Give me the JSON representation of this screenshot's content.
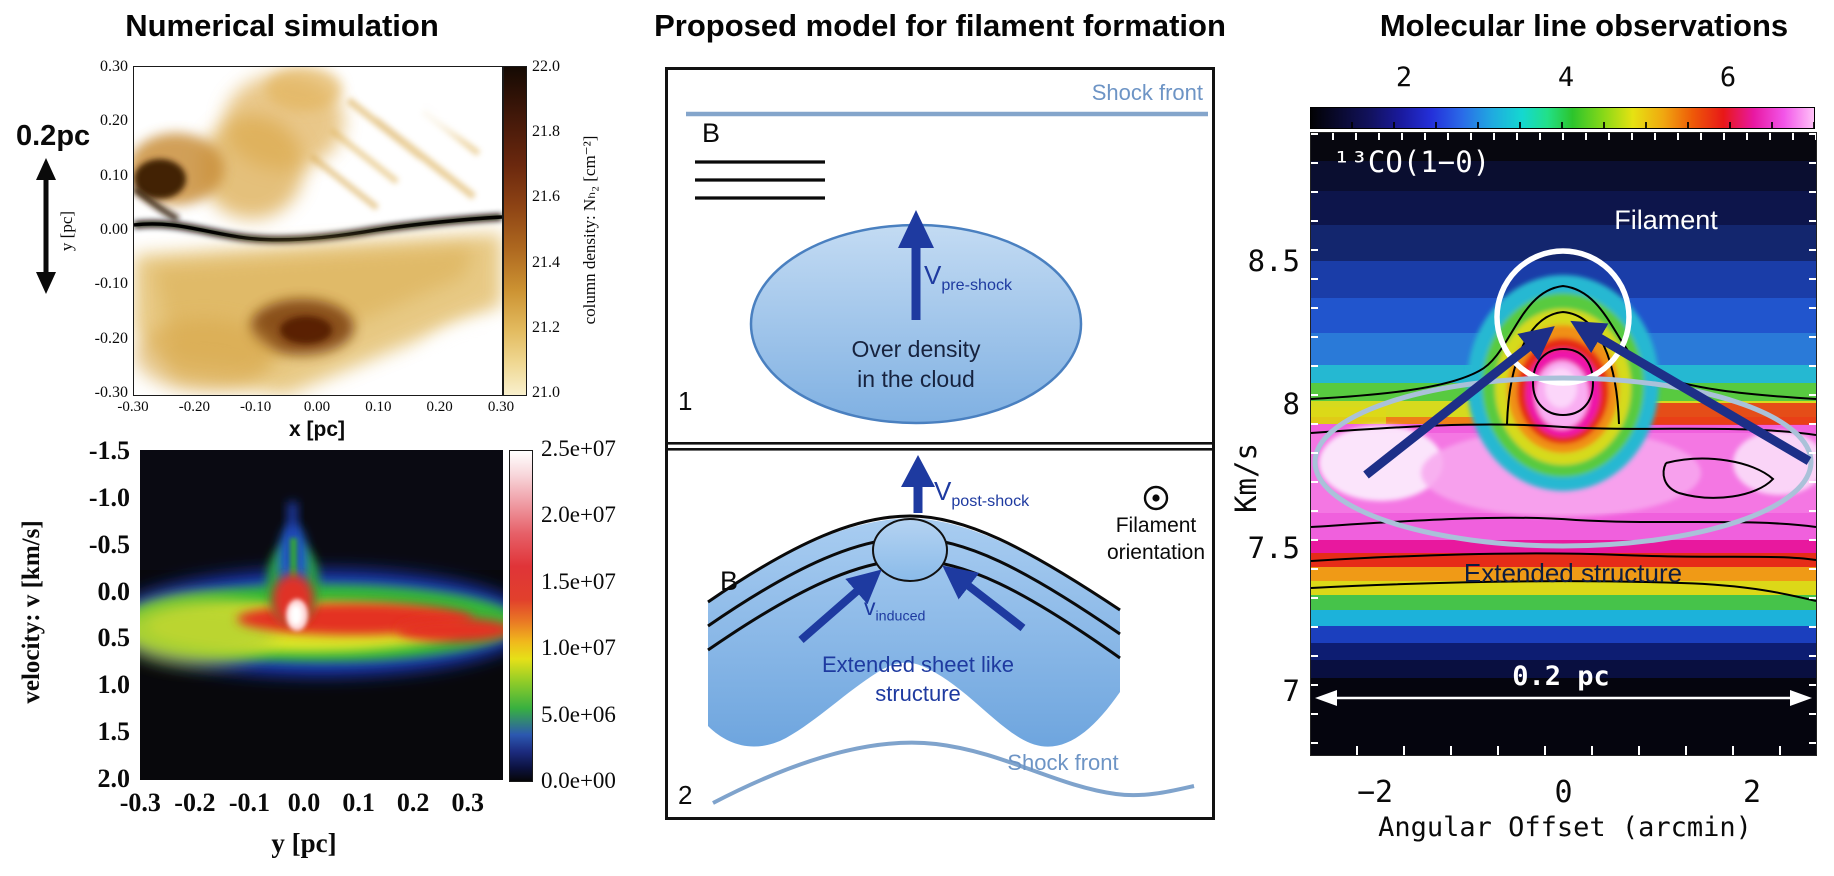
{
  "panels": {
    "left": {
      "title": "Numerical simulation",
      "scale_label": "0.2pc",
      "top_plot": {
        "ylabel": "y [pc]",
        "xlabel": "x [pc]",
        "yticks": [
          "0.30",
          "0.20",
          "0.10",
          "0.00",
          "-0.10",
          "-0.20",
          "-0.30"
        ],
        "xticks": [
          "-0.30",
          "-0.20",
          "-0.10",
          "0.00",
          "0.10",
          "0.20",
          "0.30"
        ],
        "colorbar": {
          "label": "column density: Nₕ₂ [cm⁻²]",
          "ticks": [
            "22.0",
            "21.8",
            "21.6",
            "21.4",
            "21.2",
            "21.0"
          ]
        }
      },
      "bottom_plot": {
        "ylabel": "velocity: v [km/s]",
        "xlabel": "y [pc]",
        "yticks": [
          "-1.5",
          "-1.0",
          "-0.5",
          "0.0",
          "0.5",
          "1.0",
          "1.5",
          "2.0"
        ],
        "xticks": [
          "-0.3",
          "-0.2",
          "-0.1",
          "0.0",
          "0.1",
          "0.2",
          "0.3"
        ],
        "colorbar": {
          "ticks": [
            "2.5e+07",
            "2.0e+07",
            "1.5e+07",
            "1.0e+07",
            "5.0e+06",
            "0.0e+00"
          ]
        }
      }
    },
    "middle": {
      "title": "Proposed model for filament formation",
      "stage1": {
        "number": "1",
        "shock_front_label": "Shock front",
        "b_label": "B",
        "v_label": "V",
        "v_sub": "pre-shock",
        "ellipse_line1": "Over density",
        "ellipse_line2": "in the cloud"
      },
      "stage2": {
        "number": "2",
        "v_label": "V",
        "v_sub": "post-shock",
        "b_label": "B",
        "vi_label": "v",
        "vi_sub": "induced",
        "sheet_line1": "Extended sheet like",
        "sheet_line2": "structure",
        "shock_front_label": "Shock front",
        "orientation_line1": "Filament",
        "orientation_line2": "orientation"
      }
    },
    "right": {
      "title": "Molecular line observations",
      "colorbar_ticks": [
        "2",
        "4",
        "6"
      ],
      "line_label": "¹³CO(1−0)",
      "filament_label": "Filament",
      "extended_label": "Extended structure",
      "scale_label": "0.2 pc",
      "ylabel": "Km/s",
      "yticks": [
        "8.5",
        "8",
        "7.5",
        "7"
      ],
      "xticks": [
        "−2",
        "0",
        "2"
      ],
      "xlabel": "Angular Offset (arcmin)"
    }
  },
  "colors": {
    "navy_arrow": "#1e3aa0",
    "shock_front_blue": "#84a5cb",
    "cloud_fill_light": "#c3dbf3",
    "cloud_fill_dark": "#7fb0e2",
    "filament_circle": "#ffffff",
    "extended_ellipse": "#aac1d9",
    "density_cbar_top": "#150a03",
    "density_cbar_bottom": "#f9f0cd"
  },
  "chart_data": [
    {
      "type": "heatmap",
      "title": "Numerical simulation: column density map",
      "xlabel": "x [pc]",
      "ylabel": "y [pc]",
      "xlim": [
        -0.3,
        0.3
      ],
      "ylim": [
        -0.3,
        0.3
      ],
      "xticks": [
        -0.3,
        -0.2,
        -0.1,
        0.0,
        0.1,
        0.2,
        0.3
      ],
      "yticks": [
        0.3,
        0.2,
        0.1,
        0.0,
        -0.1,
        -0.2,
        -0.3
      ],
      "colorbar": {
        "label": "column density: N_H2 [cm^-2]",
        "ticks": [
          22.0,
          21.8,
          21.6,
          21.4,
          21.2,
          21.0
        ],
        "range": [
          21.0,
          22.0
        ],
        "colormap": "cream-gold-brown-black (high = dark)"
      },
      "features": [
        "dense dark filament running horizontally along y~0.00 across full x range",
        "striated diffuse golden gas above and below the filament",
        "compact dark knot near (-0.28, 0.06)",
        "broad darker condensation near (0.05, -0.22)",
        "diagonal faint streaks in upper-right quadrant",
        "scale bar annotation 0.2pc with vertical double arrow at left"
      ]
    },
    {
      "type": "heatmap",
      "title": "Simulated position-velocity diagram",
      "xlabel": "y [pc]",
      "ylabel": "velocity: v [km/s]",
      "xlim": [
        -0.335,
        0.335
      ],
      "ylim_top_to_bottom": [
        -1.5,
        2.0
      ],
      "xticks": [
        -0.3,
        -0.2,
        -0.1,
        0.0,
        0.1,
        0.2,
        0.3
      ],
      "yticks": [
        -1.5,
        -1.0,
        -0.5,
        0.0,
        0.5,
        1.0,
        1.5,
        2.0
      ],
      "colorbar": {
        "ticks": [
          "2.5e+07",
          "2.0e+07",
          "1.5e+07",
          "1.0e+07",
          "5.0e+06",
          "0.0e+00"
        ],
        "range": [
          0,
          25000000
        ],
        "colormap": "black-blue-green-yellow-red-white (rainbow)"
      },
      "features": [
        "bright emission band centered near v~0.3-0.6 km/s spanning all y",
        "band is green/yellow dominated for y < -0.1 and red-cored toward y > -0.1",
        "peak intensity ~2.5e+07 (white core) at y~0.0, v~0.25 km/s",
        "narrow vertical spike at y~0.0 extending up to v~-0.7 km/s",
        "band drifts to slightly larger v toward y = +0.3"
      ]
    },
    {
      "type": "heatmap",
      "title": "13CO(1-0) observed position-velocity diagram",
      "xlabel": "Angular Offset (arcmin)",
      "ylabel": "Km/s",
      "xlim": [
        -2.7,
        2.7
      ],
      "ylim_bottom_to_top": [
        6.8,
        8.9
      ],
      "xticks": [
        -2,
        0,
        2
      ],
      "yticks": [
        8.5,
        8,
        7.5,
        7
      ],
      "colorbar": {
        "ticks": [
          2,
          4,
          6
        ],
        "colormap": "black-blue-cyan-green-yellow-red-magenta-pink (rainbow, horizontal bar on top)"
      },
      "annotations": [
        "Filament: white circle around compact peak near offset 0, v~8.2-8.5 km/s",
        "Extended structure: light-blue ellipse around bright band v~7.6-8.1 km/s spanning all offsets",
        "two dark-blue arrows converging from the extended structure onto the filament peak",
        "0.2 pc horizontal white double arrow near v~7 km/s",
        "black intensity contours over the color map"
      ]
    }
  ]
}
